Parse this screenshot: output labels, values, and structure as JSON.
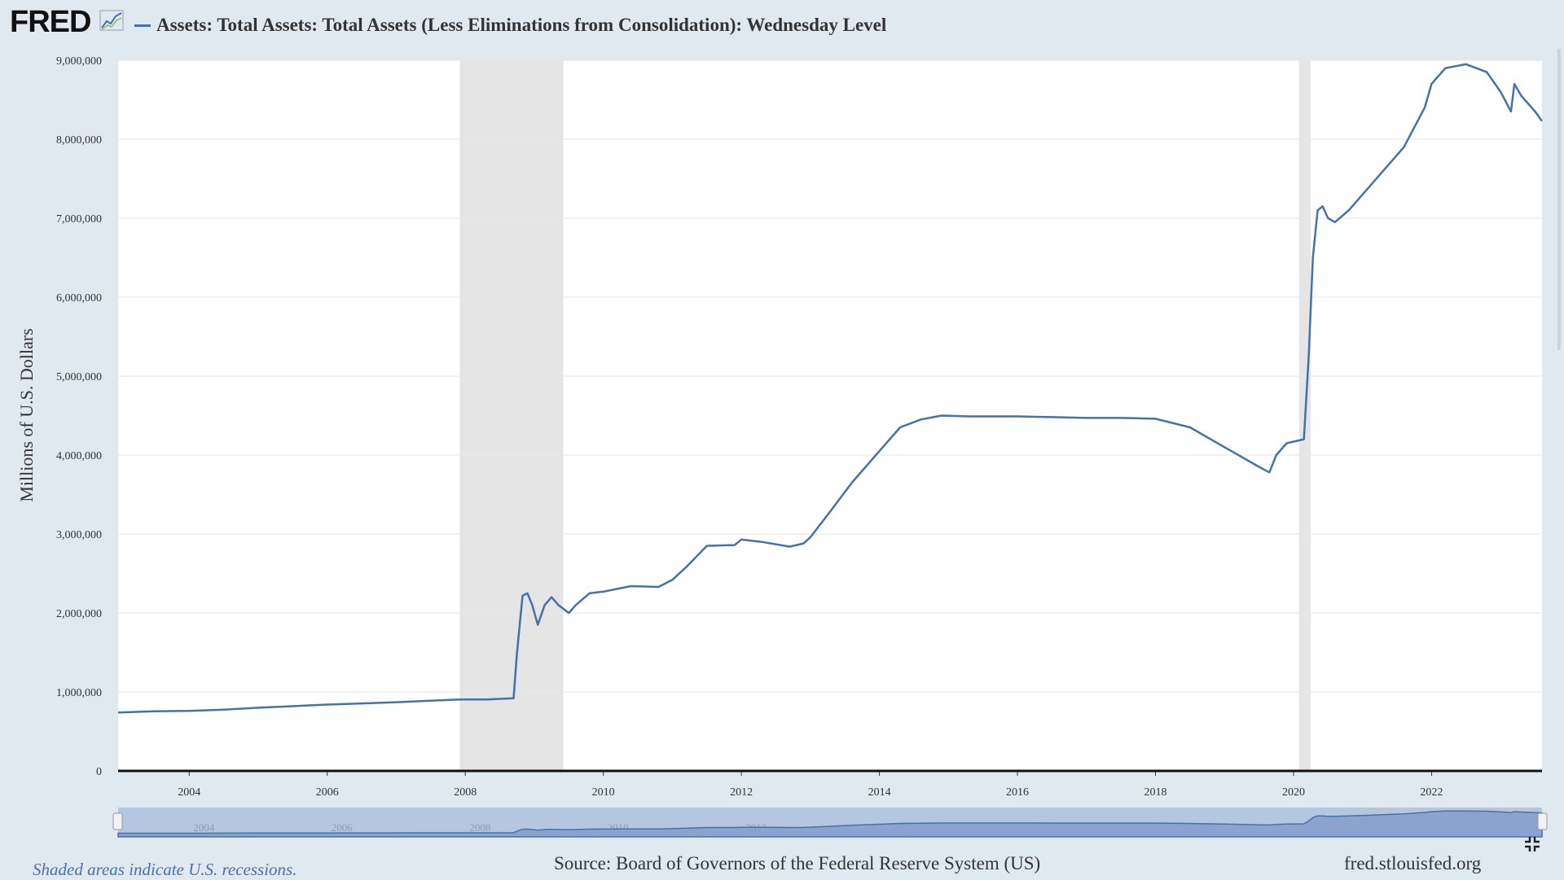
{
  "header": {
    "logo_text": "FRED",
    "logo_icon": "chart-line-icon",
    "title": "Assets: Total Assets: Total Assets (Less Eliminations from Consolidation): Wednesday Level"
  },
  "footer": {
    "recession_note": "Shaded areas indicate U.S. recessions.",
    "source": "Source: Board of Governors of the Federal Reserve System (US)",
    "url": "fred.stlouisfed.org"
  },
  "colors": {
    "series": "#4572a7",
    "background": "#e1e9f0",
    "recession": "#e5e5e5",
    "navigator_fill": "#8aa4cf"
  },
  "chart_data": {
    "type": "line",
    "title": "Assets: Total Assets: Total Assets (Less Eliminations from Consolidation): Wednesday Level",
    "xlabel": "",
    "ylabel": "Millions of U.S. Dollars",
    "xlim": [
      2002.97,
      2023.6
    ],
    "ylim": [
      0,
      9000000
    ],
    "grid": true,
    "y_ticks": [
      {
        "value": 0,
        "label": "0"
      },
      {
        "value": 1000000,
        "label": "1,000,000"
      },
      {
        "value": 2000000,
        "label": "2,000,000"
      },
      {
        "value": 3000000,
        "label": "3,000,000"
      },
      {
        "value": 4000000,
        "label": "4,000,000"
      },
      {
        "value": 5000000,
        "label": "5,000,000"
      },
      {
        "value": 6000000,
        "label": "6,000,000"
      },
      {
        "value": 7000000,
        "label": "7,000,000"
      },
      {
        "value": 8000000,
        "label": "8,000,000"
      },
      {
        "value": 9000000,
        "label": "9,000,000"
      }
    ],
    "x_ticks": [
      {
        "value": 2004,
        "label": "2004"
      },
      {
        "value": 2006,
        "label": "2006"
      },
      {
        "value": 2008,
        "label": "2008"
      },
      {
        "value": 2010,
        "label": "2010"
      },
      {
        "value": 2012,
        "label": "2012"
      },
      {
        "value": 2014,
        "label": "2014"
      },
      {
        "value": 2016,
        "label": "2016"
      },
      {
        "value": 2018,
        "label": "2018"
      },
      {
        "value": 2020,
        "label": "2020"
      },
      {
        "value": 2022,
        "label": "2022"
      }
    ],
    "recessions": [
      {
        "start": 2007.92,
        "end": 2009.42
      },
      {
        "start": 2020.08,
        "end": 2020.25
      }
    ],
    "series": [
      {
        "x": [
          2002.97,
          2003.5,
          2004.0,
          2004.5,
          2005.0,
          2005.5,
          2006.0,
          2006.5,
          2007.0,
          2007.5,
          2007.92,
          2008.3,
          2008.7,
          2008.75,
          2008.83,
          2008.9,
          2008.97,
          2009.05,
          2009.15,
          2009.25,
          2009.35,
          2009.5,
          2009.6,
          2009.8,
          2010.0,
          2010.4,
          2010.8,
          2011.0,
          2011.2,
          2011.5,
          2011.9,
          2012.0,
          2012.3,
          2012.7,
          2012.9,
          2013.0,
          2013.3,
          2013.6,
          2014.0,
          2014.3,
          2014.6,
          2014.9,
          2015.3,
          2016.0,
          2016.5,
          2017.0,
          2017.5,
          2018.0,
          2018.5,
          2019.0,
          2019.5,
          2019.65,
          2019.75,
          2019.9,
          2020.0,
          2020.15,
          2020.22,
          2020.28,
          2020.35,
          2020.42,
          2020.5,
          2020.6,
          2020.8,
          2021.0,
          2021.3,
          2021.6,
          2021.9,
          2022.0,
          2022.2,
          2022.5,
          2022.8,
          2023.0,
          2023.15,
          2023.2,
          2023.3,
          2023.5,
          2023.6
        ],
        "y": [
          740000,
          755000,
          760000,
          775000,
          800000,
          820000,
          840000,
          855000,
          870000,
          890000,
          905000,
          905000,
          920000,
          1500000,
          2220000,
          2250000,
          2100000,
          1850000,
          2100000,
          2200000,
          2100000,
          2000000,
          2100000,
          2250000,
          2270000,
          2340000,
          2330000,
          2420000,
          2580000,
          2850000,
          2860000,
          2930000,
          2900000,
          2840000,
          2880000,
          2960000,
          3300000,
          3650000,
          4050000,
          4350000,
          4450000,
          4500000,
          4490000,
          4490000,
          4480000,
          4470000,
          4470000,
          4460000,
          4350000,
          4100000,
          3850000,
          3780000,
          4000000,
          4150000,
          4170000,
          4200000,
          5250000,
          6500000,
          7100000,
          7150000,
          7000000,
          6950000,
          7100000,
          7300000,
          7600000,
          7900000,
          8400000,
          8700000,
          8900000,
          8950000,
          8850000,
          8600000,
          8350000,
          8700000,
          8550000,
          8350000,
          8230000
        ]
      }
    ]
  }
}
